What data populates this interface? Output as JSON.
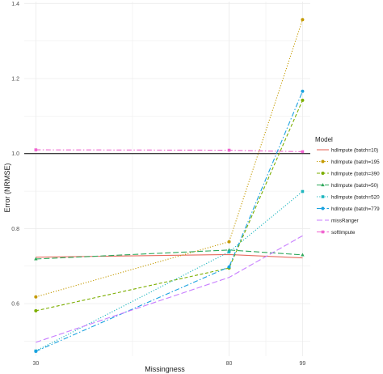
{
  "chart_data": {
    "type": "line",
    "title": "",
    "xlabel": "Missingness",
    "ylabel": "Error (NRMSE)",
    "x": [
      30,
      80,
      99
    ],
    "x_tick_labels": [
      "30",
      "80",
      "99"
    ],
    "xlim": [
      27,
      101
    ],
    "ylim": [
      0.46,
      1.405
    ],
    "y_ticks": [
      0.6,
      0.8,
      1.0,
      1.2,
      1.4
    ],
    "y_tick_labels": [
      "0.6",
      "0.8",
      "1.0",
      "1.2",
      "1.4"
    ],
    "reference_line": 1.0,
    "grid": true,
    "legend": {
      "title": "Model",
      "placement": "right"
    },
    "series": [
      {
        "name": "hdImpute (batch=10)",
        "color": "#E76B5F",
        "dash": "solid",
        "marker": "none",
        "values": [
          0.724,
          0.731,
          0.722
        ]
      },
      {
        "name": "hdImpute (batch=195",
        "color": "#C49A00",
        "dash": "dotted",
        "marker": "circle",
        "values": [
          0.618,
          0.765,
          1.357
        ]
      },
      {
        "name": "hdImpute (batch=390",
        "color": "#7CAE00",
        "dash": "dashed",
        "marker": "circle",
        "values": [
          0.581,
          0.695,
          1.142
        ]
      },
      {
        "name": "hdImpute (batch=50)",
        "color": "#2EA85B",
        "dash": "longdash",
        "marker": "triangle",
        "values": [
          0.719,
          0.743,
          0.73
        ]
      },
      {
        "name": "hdImpute (batch=520",
        "color": "#1FB6BF",
        "dash": "dotted",
        "marker": "square",
        "values": [
          0.474,
          0.738,
          0.899
        ]
      },
      {
        "name": "hdImpute (batch=779",
        "color": "#1AA2E0",
        "dash": "dashdot",
        "marker": "circle",
        "values": [
          0.473,
          0.698,
          1.166
        ]
      },
      {
        "name": "missRanger",
        "color": "#C77CFF",
        "dash": "longdash",
        "marker": "none",
        "values": [
          0.497,
          0.67,
          0.781
        ]
      },
      {
        "name": "softImpute",
        "color": "#F064D0",
        "dash": "dashdot",
        "marker": "square",
        "values": [
          1.01,
          1.009,
          1.005
        ]
      }
    ]
  }
}
